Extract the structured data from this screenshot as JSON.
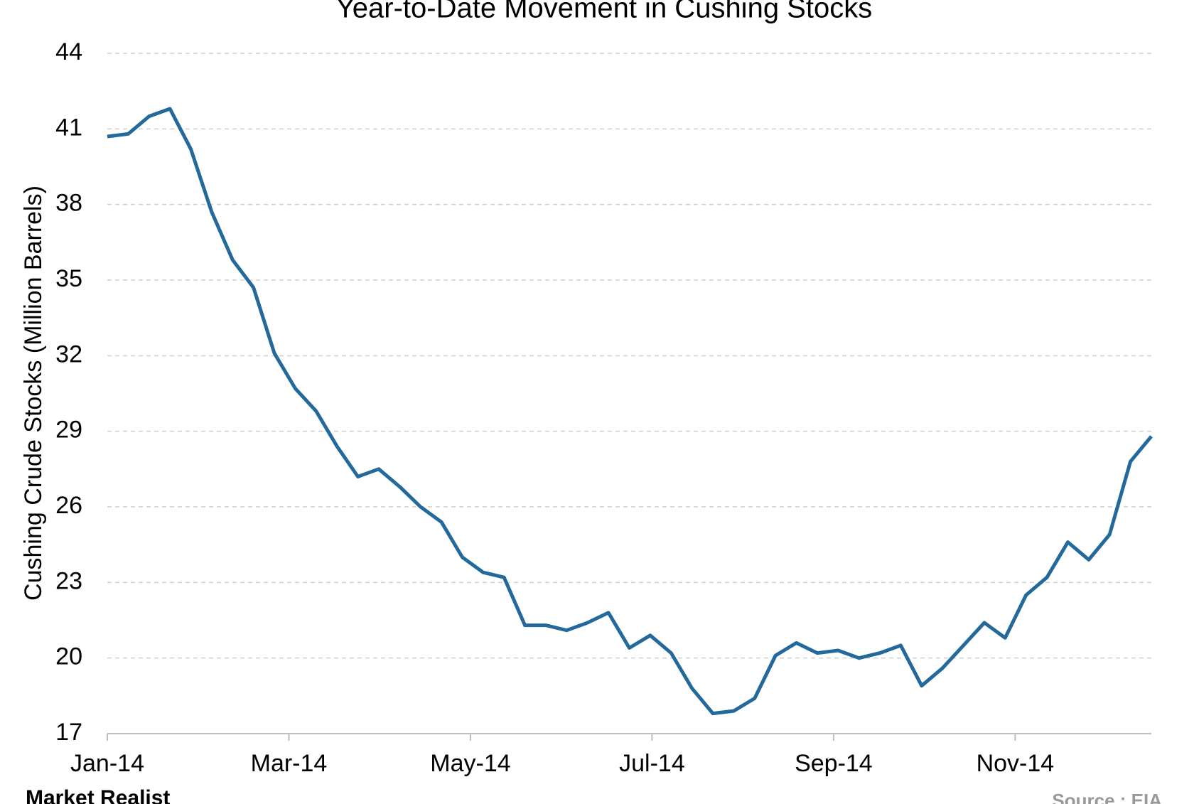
{
  "chart_data": {
    "type": "line",
    "title": "Year-to-Date Movement in Cushing Stocks",
    "y_label": "Cushing Crude Stocks (Million Barrels)",
    "x": [
      0,
      0.23,
      0.46,
      0.69,
      0.92,
      1.15,
      1.38,
      1.61,
      1.84,
      2.07,
      2.3,
      2.53,
      2.76,
      2.99,
      3.22,
      3.45,
      3.68,
      3.91,
      4.14,
      4.37,
      4.6,
      4.83,
      5.06,
      5.29,
      5.52,
      5.75,
      5.98,
      6.21,
      6.44,
      6.67,
      6.9,
      7.13,
      7.36,
      7.59,
      7.82,
      8.05,
      8.28,
      8.51,
      8.74,
      8.97,
      9.2,
      9.43,
      9.66,
      9.89,
      10.12,
      10.35,
      10.58,
      10.81,
      11.04,
      11.27,
      11.5
    ],
    "values": [
      40.7,
      40.8,
      41.5,
      41.8,
      40.2,
      37.7,
      35.8,
      34.7,
      32.1,
      30.7,
      29.8,
      28.4,
      27.2,
      27.5,
      26.8,
      26.0,
      25.4,
      24.0,
      23.4,
      23.2,
      21.3,
      21.3,
      21.1,
      21.4,
      21.8,
      20.4,
      20.9,
      20.2,
      18.8,
      17.8,
      17.9,
      18.4,
      20.1,
      20.6,
      20.2,
      20.3,
      20.0,
      20.2,
      20.5,
      18.9,
      19.6,
      20.5,
      21.4,
      20.8,
      22.5,
      23.2,
      24.6,
      23.9,
      24.9,
      27.8,
      28.8
    ],
    "color": "#23699b",
    "xlim": [
      0,
      11.5
    ],
    "xticks": [
      {
        "value": 0,
        "label": "Jan-14"
      },
      {
        "value": 2,
        "label": "Mar-14"
      },
      {
        "value": 4,
        "label": "May-14"
      },
      {
        "value": 6,
        "label": "Jul-14"
      },
      {
        "value": 8,
        "label": "Sep-14"
      },
      {
        "value": 10,
        "label": "Nov-14"
      }
    ],
    "ylim": [
      17,
      44
    ],
    "yticks": [
      17,
      20,
      23,
      26,
      29,
      32,
      35,
      38,
      41,
      44
    ],
    "grid": true
  },
  "footer": {
    "brand": "Market Realist",
    "source": "Source : EIA"
  }
}
